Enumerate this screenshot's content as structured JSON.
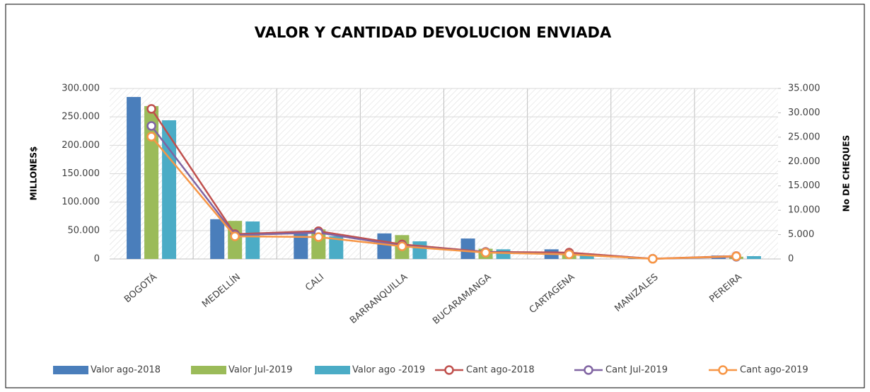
{
  "chart_data": {
    "type": "bar-line",
    "title": "VALOR Y CANTIDAD  DEVOLUCION  ENVIADA",
    "ylabel": "MILLONES$",
    "y2label": "No DE CHEQUES",
    "categories": [
      "BOGOTÁ",
      "MEDELLÍN",
      "CALI",
      "BARRANQUILLA",
      "BUCARAMANGA",
      "CARTAGENA",
      "MANIZALES",
      "PEREIRA"
    ],
    "series": [
      {
        "name": "Valor ago-2018",
        "type": "bar",
        "color": "#4a7ebb",
        "values": [
          285000,
          70000,
          45000,
          45000,
          36000,
          17000,
          1000,
          6000
        ]
      },
      {
        "name": "Valor Jul-2019",
        "type": "bar",
        "color": "#9bbb59",
        "values": [
          269000,
          67000,
          52000,
          42000,
          18000,
          11000,
          800,
          4000
        ]
      },
      {
        "name": "Valor ago -2019",
        "type": "bar",
        "color": "#4bacc6",
        "values": [
          244000,
          66000,
          40000,
          31000,
          17000,
          7000,
          600,
          5000
        ]
      },
      {
        "name": "Cant ago-2018",
        "type": "line",
        "axis": "y2",
        "color": "#c0504d",
        "values": [
          30800,
          5100,
          5700,
          3000,
          1450,
          1300,
          50,
          600
        ]
      },
      {
        "name": "Cant Jul-2019",
        "type": "line",
        "axis": "y2",
        "color": "#8064a2",
        "values": [
          27300,
          4900,
          5400,
          2700,
          1400,
          1000,
          40,
          450
        ]
      },
      {
        "name": "Cant ago-2019",
        "type": "line",
        "axis": "y2",
        "color": "#f79646",
        "values": [
          25100,
          4650,
          4500,
          2600,
          1300,
          950,
          30,
          550
        ]
      }
    ],
    "ylim": [
      0,
      300000
    ],
    "yticks": [
      0,
      {
        "value": 50000,
        "label": "50.000"
      },
      {
        "value": 100000,
        "label": "100.000"
      },
      {
        "value": 150000,
        "label": "150.000"
      },
      {
        "value": 200000,
        "label": "200.000"
      },
      {
        "value": 250000,
        "label": "250.000"
      },
      {
        "value": 300000,
        "label": "300.000"
      }
    ],
    "y2lim": [
      0,
      35000
    ],
    "y2ticks": [
      0,
      {
        "value": 5000,
        "label": "5.000"
      },
      {
        "value": 10000,
        "label": "10.000"
      },
      {
        "value": 15000,
        "label": "15.000"
      },
      {
        "value": 20000,
        "label": "20.000"
      },
      {
        "value": 25000,
        "label": "25.000"
      },
      {
        "value": 30000,
        "label": "30.000"
      },
      {
        "value": 35000,
        "label": "35.000"
      }
    ],
    "grid": true,
    "legend": "bottom"
  }
}
